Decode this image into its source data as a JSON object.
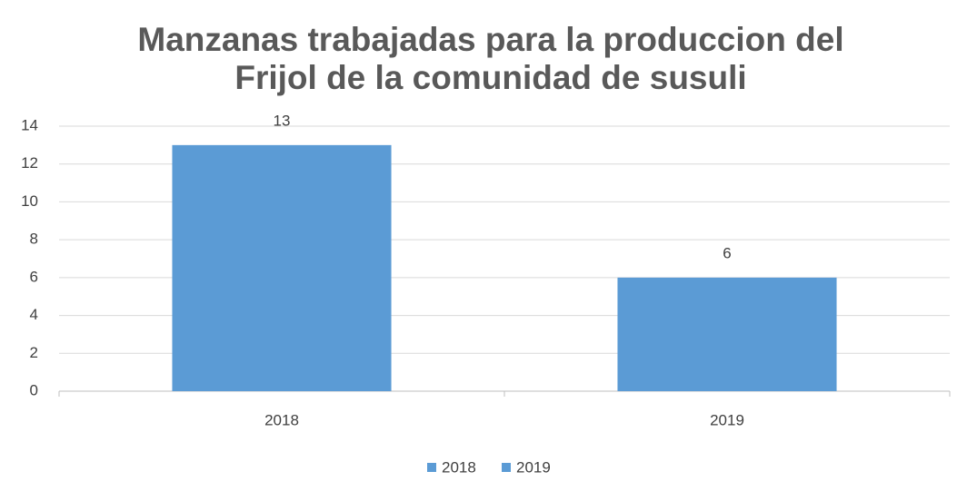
{
  "chart_data": {
    "type": "bar",
    "title": [
      "Manzanas trabajadas para la produccion del",
      "Frijol de la comunidad de susuli"
    ],
    "categories": [
      "2018",
      "2019"
    ],
    "values": [
      13,
      6
    ],
    "color": "#5b9bd5",
    "ylim": [
      0,
      14
    ],
    "yticks": [
      0,
      2,
      4,
      6,
      8,
      10,
      12,
      14
    ],
    "grid": true,
    "legend": "bottom"
  }
}
